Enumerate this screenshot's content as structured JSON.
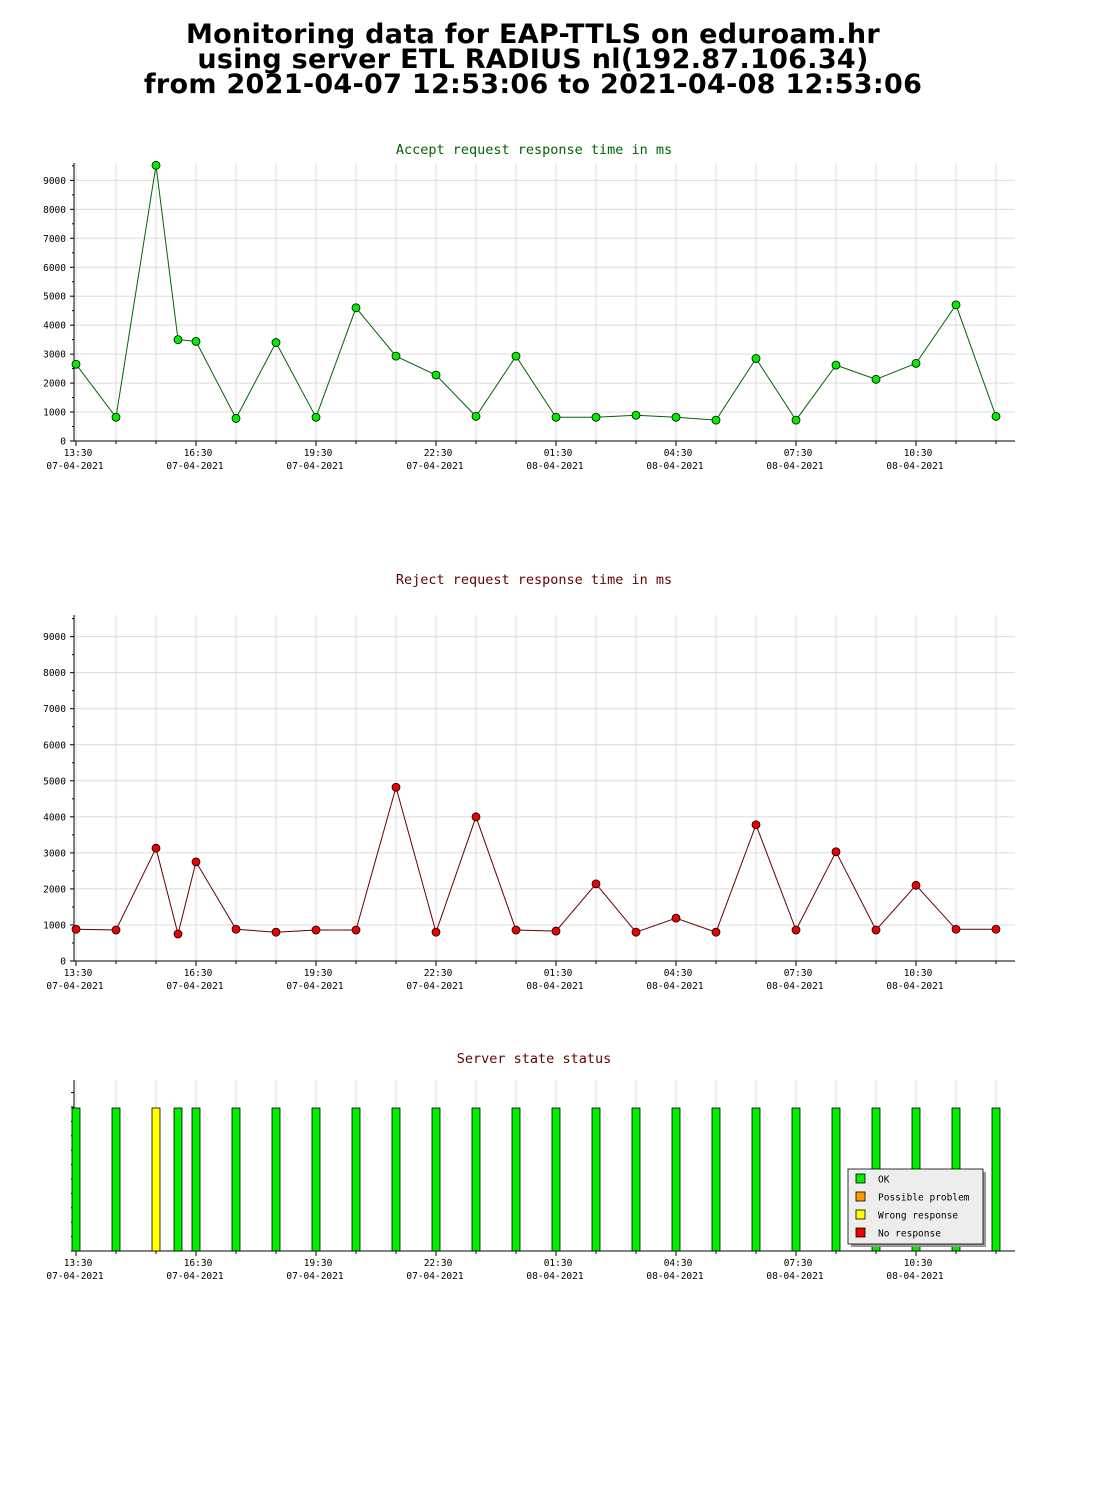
{
  "header": {
    "line1": "Monitoring data for EAP-TTLS on eduroam.hr",
    "line2": "using server ETL RADIUS nl(192.87.106.34)",
    "line3": "from 2021-04-07 12:53:06 to 2021-04-08 12:53:06"
  },
  "colors": {
    "accept_title": "#006400",
    "reject_title": "#640000",
    "status_title": "#640000",
    "accept_line": "#006400",
    "accept_marker": "#00ee00",
    "reject_line": "#640000",
    "reject_marker": "#ee0000",
    "grid": "#dcdcdc"
  },
  "x_ticks": [
    {
      "time": "13:30",
      "date": "07-04-2021"
    },
    {
      "time": "16:30",
      "date": "07-04-2021"
    },
    {
      "time": "19:30",
      "date": "07-04-2021"
    },
    {
      "time": "22:30",
      "date": "07-04-2021"
    },
    {
      "time": "01:30",
      "date": "08-04-2021"
    },
    {
      "time": "04:30",
      "date": "08-04-2021"
    },
    {
      "time": "07:30",
      "date": "08-04-2021"
    },
    {
      "time": "10:30",
      "date": "08-04-2021"
    }
  ],
  "legend": {
    "ok": "OK",
    "possible": "Possible problem",
    "wrong": "Wrong response",
    "none": "No response",
    "ok_color": "#00ee00",
    "possible_color": "#ff9900",
    "wrong_color": "#ffff00",
    "none_color": "#ee0000"
  },
  "chart_data": [
    {
      "type": "line",
      "title": "Accept request response time in ms",
      "xlabel": "",
      "ylabel": "",
      "ylim": [
        0,
        9600
      ],
      "y_ticks": [
        0,
        1000,
        2000,
        3000,
        4000,
        5000,
        6000,
        7000,
        8000,
        9000
      ],
      "x": [
        "2021-04-07 13:30",
        "2021-04-07 14:30",
        "2021-04-07 15:30",
        "2021-04-07 16:03",
        "2021-04-07 16:30",
        "2021-04-07 17:30",
        "2021-04-07 18:30",
        "2021-04-07 19:30",
        "2021-04-07 20:30",
        "2021-04-07 21:30",
        "2021-04-07 22:30",
        "2021-04-07 23:30",
        "2021-04-08 00:30",
        "2021-04-08 01:30",
        "2021-04-08 02:30",
        "2021-04-08 03:30",
        "2021-04-08 04:30",
        "2021-04-08 05:30",
        "2021-04-08 06:30",
        "2021-04-08 07:30",
        "2021-04-08 08:30",
        "2021-04-08 09:30",
        "2021-04-08 10:30",
        "2021-04-08 11:30",
        "2021-04-08 12:30"
      ],
      "values": [
        2650,
        820,
        9520,
        3500,
        3440,
        780,
        3400,
        820,
        4600,
        2930,
        2280,
        850,
        2930,
        820,
        820,
        890,
        820,
        720,
        2850,
        720,
        2620,
        2130,
        2680,
        4700,
        850
      ]
    },
    {
      "type": "line",
      "title": "Reject request response time in ms",
      "xlabel": "",
      "ylabel": "",
      "ylim": [
        0,
        9600
      ],
      "y_ticks": [
        0,
        1000,
        2000,
        3000,
        4000,
        5000,
        6000,
        7000,
        8000,
        9000
      ],
      "x": [
        "2021-04-07 13:30",
        "2021-04-07 14:30",
        "2021-04-07 15:30",
        "2021-04-07 16:03",
        "2021-04-07 16:30",
        "2021-04-07 17:30",
        "2021-04-07 18:30",
        "2021-04-07 19:30",
        "2021-04-07 20:30",
        "2021-04-07 21:30",
        "2021-04-07 22:30",
        "2021-04-07 23:30",
        "2021-04-08 00:30",
        "2021-04-08 01:30",
        "2021-04-08 02:30",
        "2021-04-08 03:30",
        "2021-04-08 04:30",
        "2021-04-08 05:30",
        "2021-04-08 06:30",
        "2021-04-08 07:30",
        "2021-04-08 08:30",
        "2021-04-08 09:30",
        "2021-04-08 10:30",
        "2021-04-08 11:30",
        "2021-04-08 12:30"
      ],
      "values": [
        880,
        860,
        3130,
        750,
        2750,
        880,
        800,
        860,
        860,
        4820,
        800,
        4000,
        860,
        830,
        2140,
        800,
        1190,
        800,
        3780,
        860,
        3030,
        860,
        2100,
        880,
        880
      ]
    },
    {
      "type": "bar",
      "title": "Server state status",
      "xlabel": "",
      "ylabel": "",
      "legend": "bottom-right",
      "x": [
        "2021-04-07 13:30",
        "2021-04-07 14:30",
        "2021-04-07 15:30",
        "2021-04-07 16:03",
        "2021-04-07 16:30",
        "2021-04-07 17:30",
        "2021-04-07 18:30",
        "2021-04-07 19:30",
        "2021-04-07 20:30",
        "2021-04-07 21:30",
        "2021-04-07 22:30",
        "2021-04-07 23:30",
        "2021-04-08 00:30",
        "2021-04-08 01:30",
        "2021-04-08 02:30",
        "2021-04-08 03:30",
        "2021-04-08 04:30",
        "2021-04-08 05:30",
        "2021-04-08 06:30",
        "2021-04-08 07:30",
        "2021-04-08 08:30",
        "2021-04-08 09:30",
        "2021-04-08 10:30",
        "2021-04-08 11:30",
        "2021-04-08 12:30"
      ],
      "states": [
        "OK",
        "OK",
        "Wrong response",
        "OK",
        "OK",
        "OK",
        "OK",
        "OK",
        "OK",
        "OK",
        "OK",
        "OK",
        "OK",
        "OK",
        "OK",
        "OK",
        "OK",
        "OK",
        "OK",
        "OK",
        "OK",
        "OK",
        "OK",
        "OK",
        "OK"
      ]
    }
  ]
}
